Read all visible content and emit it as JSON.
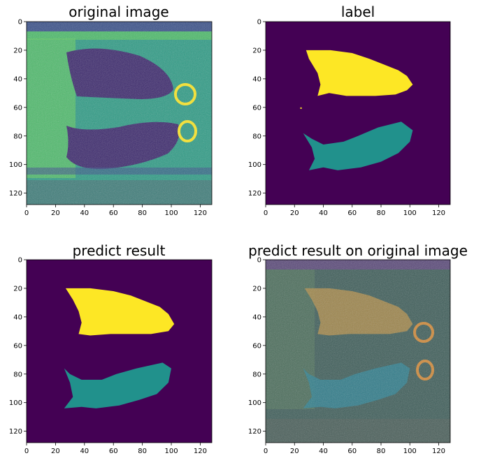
{
  "figure": {
    "layout": "2x2 grid of image panels"
  },
  "colors": {
    "viridis_dark": "#440154",
    "viridis_mid": "#21918c",
    "viridis_bright": "#fde725",
    "viridis_green": "#35b779",
    "viridis_blue": "#3b528b",
    "orange_overlay": "#d08a3a"
  },
  "chart_data": [
    {
      "type": "heatmap",
      "id": "original",
      "title": "original image",
      "xlim": [
        0,
        128
      ],
      "ylim": [
        128,
        0
      ],
      "xticks": [
        0,
        20,
        40,
        60,
        80,
        100,
        120
      ],
      "yticks": [
        0,
        20,
        40,
        60,
        80,
        100,
        120
      ],
      "colormap": "viridis",
      "content": "CT slice of lungs (two dark lung regions on green background)"
    },
    {
      "type": "heatmap",
      "id": "label",
      "title": "label",
      "xlim": [
        0,
        128
      ],
      "ylim": [
        128,
        0
      ],
      "xticks": [
        0,
        20,
        40,
        60,
        80,
        100,
        120
      ],
      "yticks": [
        0,
        20,
        40,
        60,
        80,
        100,
        120
      ],
      "colormap": "viridis",
      "classes": [
        {
          "name": "background",
          "value": 0
        },
        {
          "name": "upper lung",
          "value": 2
        },
        {
          "name": "lower lung",
          "value": 1
        }
      ],
      "regions": [
        {
          "class": "upper lung",
          "polygon_data": [
            [
              28,
              20
            ],
            [
              45,
              20
            ],
            [
              60,
              22
            ],
            [
              72,
              26
            ],
            [
              82,
              30
            ],
            [
              92,
              34
            ],
            [
              98,
              38
            ],
            [
              102,
              44
            ],
            [
              98,
              48
            ],
            [
              90,
              51
            ],
            [
              76,
              52
            ],
            [
              66,
              52
            ],
            [
              56,
              52
            ],
            [
              44,
              50
            ],
            [
              36,
              52
            ],
            [
              38,
              44
            ],
            [
              36,
              36
            ],
            [
              30,
              26
            ]
          ]
        },
        {
          "class": "lower lung",
          "polygon_data": [
            [
              26,
              78
            ],
            [
              32,
              82
            ],
            [
              40,
              86
            ],
            [
              54,
              84
            ],
            [
              64,
              80
            ],
            [
              78,
              74
            ],
            [
              94,
              70
            ],
            [
              102,
              76
            ],
            [
              100,
              84
            ],
            [
              92,
              92
            ],
            [
              80,
              98
            ],
            [
              66,
              102
            ],
            [
              50,
              104
            ],
            [
              40,
              102
            ],
            [
              30,
              104
            ],
            [
              34,
              96
            ],
            [
              32,
              88
            ]
          ]
        },
        {
          "class": "upper lung",
          "polygon_data": [
            [
              24,
              60
            ],
            [
              25,
              60
            ],
            [
              25,
              61
            ],
            [
              24,
              61
            ]
          ]
        }
      ]
    },
    {
      "type": "heatmap",
      "id": "predict",
      "title": "predict result",
      "xlim": [
        0,
        128
      ],
      "ylim": [
        128,
        0
      ],
      "xticks": [
        0,
        20,
        40,
        60,
        80,
        100,
        120
      ],
      "yticks": [
        0,
        20,
        40,
        60,
        80,
        100,
        120
      ],
      "colormap": "viridis",
      "regions": [
        {
          "class": "upper lung",
          "polygon_data": [
            [
              27,
              20
            ],
            [
              44,
              20
            ],
            [
              60,
              22
            ],
            [
              72,
              25
            ],
            [
              82,
              29
            ],
            [
              92,
              33
            ],
            [
              98,
              38
            ],
            [
              102,
              45
            ],
            [
              98,
              50
            ],
            [
              86,
              52
            ],
            [
              70,
              52
            ],
            [
              58,
              52
            ],
            [
              44,
              53
            ],
            [
              36,
              52
            ],
            [
              38,
              44
            ],
            [
              36,
              36
            ],
            [
              32,
              28
            ]
          ]
        },
        {
          "class": "lower lung",
          "polygon_data": [
            [
              26,
              76
            ],
            [
              30,
              80
            ],
            [
              38,
              84
            ],
            [
              52,
              84
            ],
            [
              62,
              80
            ],
            [
              76,
              76
            ],
            [
              94,
              72
            ],
            [
              100,
              76
            ],
            [
              98,
              86
            ],
            [
              90,
              94
            ],
            [
              78,
              98
            ],
            [
              64,
              102
            ],
            [
              48,
              104
            ],
            [
              38,
              103
            ],
            [
              26,
              104
            ],
            [
              32,
              96
            ],
            [
              30,
              86
            ]
          ]
        }
      ]
    },
    {
      "type": "heatmap",
      "id": "overlay",
      "title": "predict result on original image",
      "xlim": [
        0,
        128
      ],
      "ylim": [
        128,
        0
      ],
      "xticks": [
        0,
        20,
        40,
        60,
        80,
        100,
        120
      ],
      "yticks": [
        0,
        20,
        40,
        60,
        80,
        100,
        120
      ],
      "colormap": "viridis blended with prediction mask",
      "content": "prediction mask overlaid semi-transparently on CT slice"
    }
  ]
}
